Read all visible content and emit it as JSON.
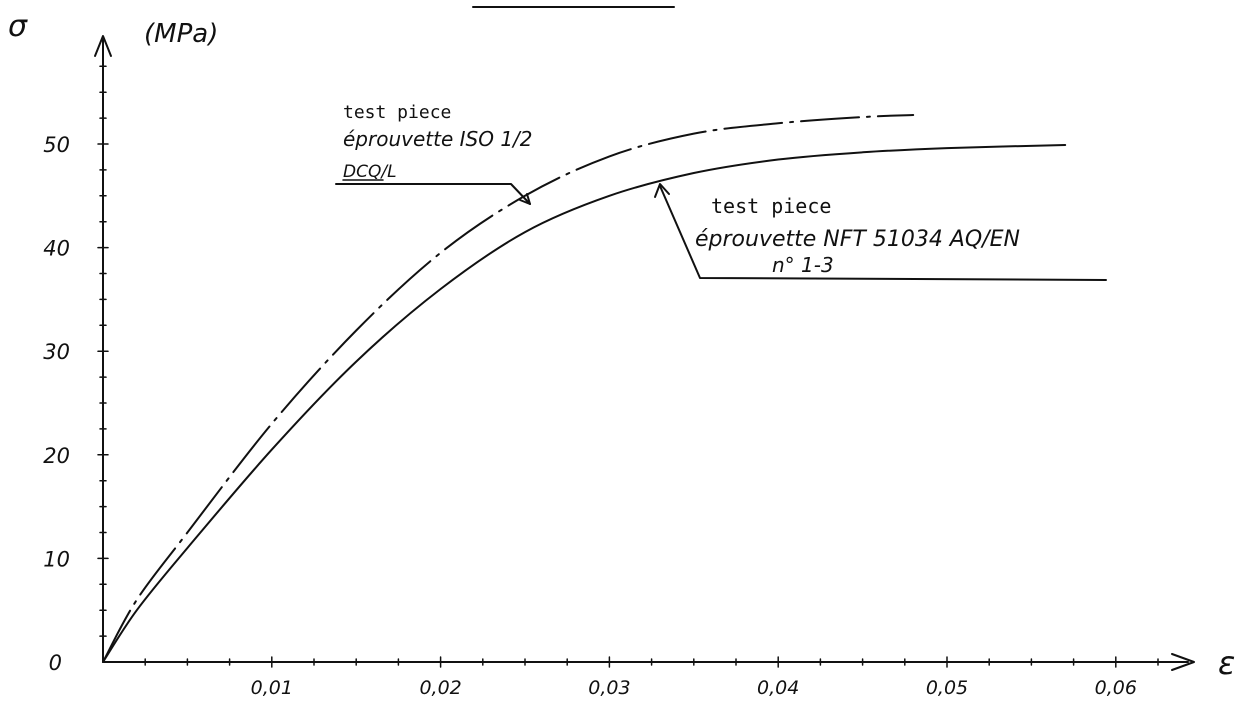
{
  "chart_data": {
    "type": "line",
    "ylabel": "σ",
    "ylabel_unit": "(MPa)",
    "xlabel": "ε",
    "xlim": [
      0,
      0.06
    ],
    "ylim": [
      0,
      50
    ],
    "x_ticks": [
      {
        "value": 0.01,
        "label": "0,01"
      },
      {
        "value": 0.02,
        "label": "0,02"
      },
      {
        "value": 0.03,
        "label": "0,03"
      },
      {
        "value": 0.04,
        "label": "0,04"
      },
      {
        "value": 0.05,
        "label": "0,05"
      },
      {
        "value": 0.06,
        "label": "0,06"
      }
    ],
    "y_ticks": [
      {
        "value": 0,
        "label": "0"
      },
      {
        "value": 10,
        "label": "10"
      },
      {
        "value": 20,
        "label": "20"
      },
      {
        "value": 30,
        "label": "30"
      },
      {
        "value": 40,
        "label": "40"
      },
      {
        "value": 50,
        "label": "50"
      }
    ],
    "series": [
      {
        "style": "dash-dot",
        "x": [
          0,
          0.002,
          0.005,
          0.01,
          0.015,
          0.02,
          0.025,
          0.03,
          0.035,
          0.04,
          0.045,
          0.048
        ],
        "y": [
          0,
          6,
          12.5,
          23,
          32,
          39.5,
          45,
          48.8,
          51,
          52,
          52.6,
          52.8
        ]
      },
      {
        "style": "solid",
        "x": [
          0,
          0.002,
          0.005,
          0.01,
          0.015,
          0.02,
          0.025,
          0.03,
          0.035,
          0.04,
          0.045,
          0.05,
          0.057
        ],
        "y": [
          0,
          5,
          11,
          20.5,
          29,
          36,
          41.5,
          45,
          47.2,
          48.5,
          49.2,
          49.6,
          49.9
        ]
      }
    ],
    "annotations": [
      {
        "lines": [
          "test piece",
          "éprouvette ISO 1/2",
          "DCQ/L"
        ]
      },
      {
        "lines": [
          "test piece",
          "éprouvette NFT 51034  AQ/EN",
          "n° 1-3"
        ]
      }
    ]
  }
}
